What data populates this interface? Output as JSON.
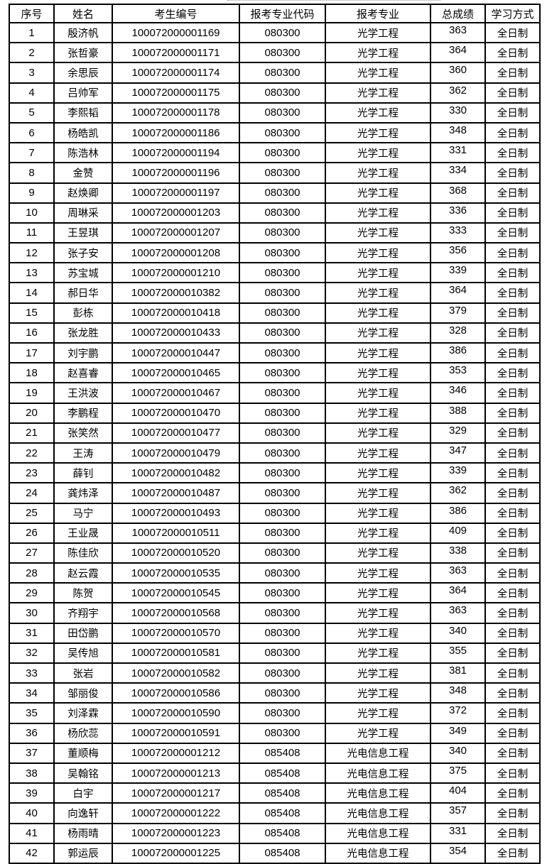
{
  "headers": [
    "序号",
    "姓名",
    "考生编号",
    "报考专业代码",
    "报考专业",
    "总成绩",
    "学习方式"
  ],
  "rows": [
    [
      "1",
      "殷济帆",
      "100072000001169",
      "080300",
      "光学工程",
      "363",
      "全日制"
    ],
    [
      "2",
      "张哲豪",
      "100072000001171",
      "080300",
      "光学工程",
      "364",
      "全日制"
    ],
    [
      "3",
      "余思辰",
      "100072000001174",
      "080300",
      "光学工程",
      "360",
      "全日制"
    ],
    [
      "4",
      "吕帅军",
      "100072000001175",
      "080300",
      "光学工程",
      "362",
      "全日制"
    ],
    [
      "5",
      "李熙韬",
      "100072000001178",
      "080300",
      "光学工程",
      "330",
      "全日制"
    ],
    [
      "6",
      "杨皓凯",
      "100072000001186",
      "080300",
      "光学工程",
      "348",
      "全日制"
    ],
    [
      "7",
      "陈浩林",
      "100072000001194",
      "080300",
      "光学工程",
      "331",
      "全日制"
    ],
    [
      "8",
      "金赞",
      "100072000001196",
      "080300",
      "光学工程",
      "334",
      "全日制"
    ],
    [
      "9",
      "赵焕卿",
      "100072000001197",
      "080300",
      "光学工程",
      "368",
      "全日制"
    ],
    [
      "10",
      "周琳采",
      "100072000001203",
      "080300",
      "光学工程",
      "336",
      "全日制"
    ],
    [
      "11",
      "王昱琪",
      "100072000001207",
      "080300",
      "光学工程",
      "333",
      "全日制"
    ],
    [
      "12",
      "张子安",
      "100072000001208",
      "080300",
      "光学工程",
      "356",
      "全日制"
    ],
    [
      "13",
      "苏宝城",
      "100072000001210",
      "080300",
      "光学工程",
      "339",
      "全日制"
    ],
    [
      "14",
      "郝日华",
      "100072000010382",
      "080300",
      "光学工程",
      "364",
      "全日制"
    ],
    [
      "15",
      "彭栋",
      "100072000010418",
      "080300",
      "光学工程",
      "379",
      "全日制"
    ],
    [
      "16",
      "张龙胜",
      "100072000010433",
      "080300",
      "光学工程",
      "328",
      "全日制"
    ],
    [
      "17",
      "刘宇鹏",
      "100072000010447",
      "080300",
      "光学工程",
      "386",
      "全日制"
    ],
    [
      "18",
      "赵喜睿",
      "100072000010465",
      "080300",
      "光学工程",
      "353",
      "全日制"
    ],
    [
      "19",
      "王洪波",
      "100072000010467",
      "080300",
      "光学工程",
      "346",
      "全日制"
    ],
    [
      "20",
      "李鹏程",
      "100072000010470",
      "080300",
      "光学工程",
      "388",
      "全日制"
    ],
    [
      "21",
      "张笑然",
      "100072000010477",
      "080300",
      "光学工程",
      "329",
      "全日制"
    ],
    [
      "22",
      "王涛",
      "100072000010479",
      "080300",
      "光学工程",
      "347",
      "全日制"
    ],
    [
      "23",
      "薛钊",
      "100072000010482",
      "080300",
      "光学工程",
      "339",
      "全日制"
    ],
    [
      "24",
      "龚炜泽",
      "100072000010487",
      "080300",
      "光学工程",
      "362",
      "全日制"
    ],
    [
      "25",
      "马宁",
      "100072000010493",
      "080300",
      "光学工程",
      "386",
      "全日制"
    ],
    [
      "26",
      "王业晟",
      "100072000010511",
      "080300",
      "光学工程",
      "409",
      "全日制"
    ],
    [
      "27",
      "陈佳欣",
      "100072000010520",
      "080300",
      "光学工程",
      "338",
      "全日制"
    ],
    [
      "28",
      "赵云霞",
      "100072000010535",
      "080300",
      "光学工程",
      "363",
      "全日制"
    ],
    [
      "29",
      "陈贺",
      "100072000010545",
      "080300",
      "光学工程",
      "364",
      "全日制"
    ],
    [
      "30",
      "齐翔宇",
      "100072000010568",
      "080300",
      "光学工程",
      "363",
      "全日制"
    ],
    [
      "31",
      "田岱鹏",
      "100072000010570",
      "080300",
      "光学工程",
      "340",
      "全日制"
    ],
    [
      "32",
      "吴传旭",
      "100072000010581",
      "080300",
      "光学工程",
      "355",
      "全日制"
    ],
    [
      "33",
      "张岩",
      "100072000010582",
      "080300",
      "光学工程",
      "381",
      "全日制"
    ],
    [
      "34",
      "邹丽俊",
      "100072000010586",
      "080300",
      "光学工程",
      "348",
      "全日制"
    ],
    [
      "35",
      "刘泽霖",
      "100072000010590",
      "080300",
      "光学工程",
      "372",
      "全日制"
    ],
    [
      "36",
      "杨欣蕊",
      "100072000010591",
      "080300",
      "光学工程",
      "349",
      "全日制"
    ],
    [
      "37",
      "董顺梅",
      "100072000001212",
      "085408",
      "光电信息工程",
      "340",
      "全日制"
    ],
    [
      "38",
      "吴翰铭",
      "100072000001213",
      "085408",
      "光电信息工程",
      "375",
      "全日制"
    ],
    [
      "39",
      "白宇",
      "100072000001217",
      "085408",
      "光电信息工程",
      "404",
      "全日制"
    ],
    [
      "40",
      "向逸轩",
      "100072000001222",
      "085408",
      "光电信息工程",
      "357",
      "全日制"
    ],
    [
      "41",
      "杨雨晴",
      "100072000001223",
      "085408",
      "光电信息工程",
      "331",
      "全日制"
    ],
    [
      "42",
      "郭运辰",
      "100072000001225",
      "085408",
      "光电信息工程",
      "354",
      "全日制"
    ]
  ]
}
